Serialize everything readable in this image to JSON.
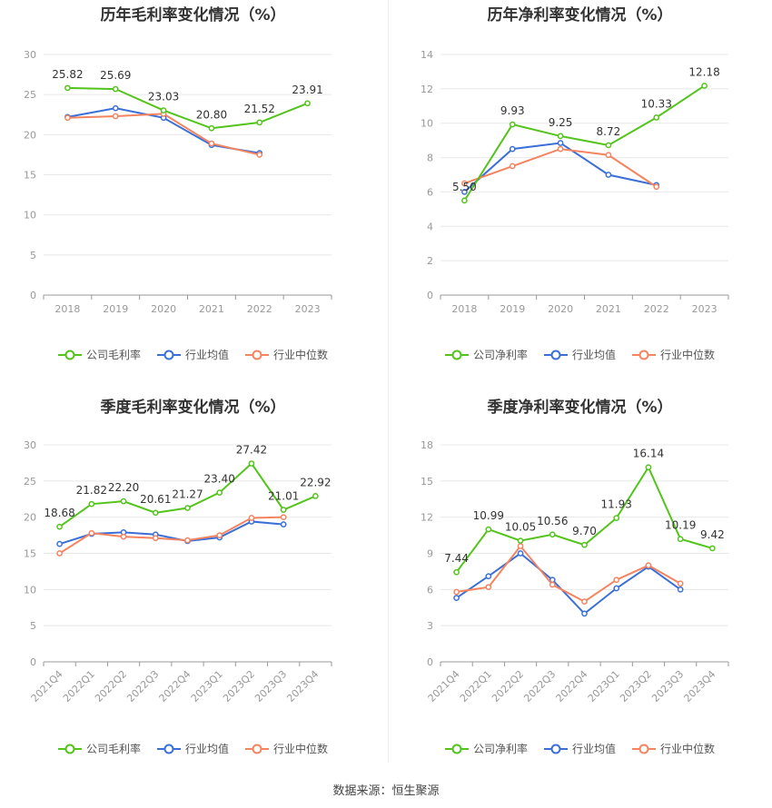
{
  "colors": {
    "company": "#52c41a",
    "avg": "#3b6fd8",
    "median": "#f4835f"
  },
  "source": "数据来源：恒生聚源",
  "chart_data": [
    {
      "type": "line",
      "title": "历年毛利率变化情况（%）",
      "categories": [
        "2018",
        "2019",
        "2020",
        "2021",
        "2022",
        "2023"
      ],
      "ylim": [
        0,
        30
      ],
      "yticks": [
        0,
        5,
        10,
        15,
        20,
        25,
        30
      ],
      "series": [
        {
          "name": "公司毛利率",
          "key": "company",
          "values": [
            25.82,
            25.69,
            23.03,
            20.8,
            21.52,
            23.91
          ],
          "labels": [
            "25.82",
            "25.69",
            "23.03",
            "20.80",
            "21.52",
            "23.91"
          ]
        },
        {
          "name": "行业均值",
          "key": "avg",
          "values": [
            22.2,
            23.3,
            22.1,
            18.7,
            17.7,
            null
          ]
        },
        {
          "name": "行业中位数",
          "key": "median",
          "values": [
            22.1,
            22.3,
            22.6,
            18.9,
            17.5,
            null
          ]
        }
      ],
      "grid": true,
      "legend": "bottom"
    },
    {
      "type": "line",
      "title": "历年净利率变化情况（%）",
      "categories": [
        "2018",
        "2019",
        "2020",
        "2021",
        "2022",
        "2023"
      ],
      "ylim": [
        0,
        14
      ],
      "yticks": [
        0,
        2,
        4,
        6,
        8,
        10,
        12,
        14
      ],
      "series": [
        {
          "name": "公司净利率",
          "key": "company",
          "values": [
            5.5,
            9.93,
            9.25,
            8.72,
            10.33,
            12.18
          ],
          "labels": [
            "5.50",
            "9.93",
            "9.25",
            "8.72",
            "10.33",
            "12.18"
          ]
        },
        {
          "name": "行业均值",
          "key": "avg",
          "values": [
            6.0,
            8.5,
            8.85,
            7.0,
            6.4,
            null
          ]
        },
        {
          "name": "行业中位数",
          "key": "median",
          "values": [
            6.5,
            7.5,
            8.5,
            8.15,
            6.3,
            null
          ]
        }
      ],
      "grid": true,
      "legend": "bottom"
    },
    {
      "type": "line",
      "title": "季度毛利率变化情况（%）",
      "categories": [
        "2021Q4",
        "2022Q1",
        "2022Q2",
        "2022Q3",
        "2022Q4",
        "2023Q1",
        "2023Q2",
        "2023Q3",
        "2023Q4"
      ],
      "ylim": [
        0,
        30
      ],
      "yticks": [
        0,
        5,
        10,
        15,
        20,
        25,
        30
      ],
      "series": [
        {
          "name": "公司毛利率",
          "key": "company",
          "values": [
            18.68,
            21.82,
            22.2,
            20.61,
            21.27,
            23.4,
            27.42,
            21.01,
            22.92
          ],
          "labels": [
            "18.68",
            "21.82",
            "22.20",
            "20.61",
            "21.27",
            "23.40",
            "27.42",
            "21.01",
            "22.92"
          ]
        },
        {
          "name": "行业均值",
          "key": "avg",
          "values": [
            16.3,
            17.7,
            17.9,
            17.6,
            16.7,
            17.2,
            19.4,
            19.0,
            null
          ]
        },
        {
          "name": "行业中位数",
          "key": "median",
          "values": [
            15.0,
            17.8,
            17.3,
            17.1,
            16.8,
            17.5,
            19.9,
            20.0,
            null
          ]
        }
      ],
      "grid": true,
      "legend": "bottom"
    },
    {
      "type": "line",
      "title": "季度净利率变化情况（%）",
      "categories": [
        "2021Q4",
        "2022Q1",
        "2022Q2",
        "2022Q3",
        "2022Q4",
        "2023Q1",
        "2023Q2",
        "2023Q3",
        "2023Q4"
      ],
      "ylim": [
        0,
        18
      ],
      "yticks": [
        0,
        3,
        6,
        9,
        12,
        15,
        18
      ],
      "series": [
        {
          "name": "公司净利率",
          "key": "company",
          "values": [
            7.44,
            10.99,
            10.05,
            10.56,
            9.7,
            11.93,
            16.14,
            10.19,
            9.42
          ],
          "labels": [
            "7.44",
            "10.99",
            "10.05",
            "10.56",
            "9.70",
            "11.93",
            "16.14",
            "10.19",
            "9.42"
          ]
        },
        {
          "name": "行业均值",
          "key": "avg",
          "values": [
            5.3,
            7.1,
            9.0,
            6.8,
            4.0,
            6.1,
            7.9,
            6.0,
            null
          ]
        },
        {
          "name": "行业中位数",
          "key": "median",
          "values": [
            5.8,
            6.2,
            9.6,
            6.4,
            5.0,
            6.8,
            8.0,
            6.5,
            null
          ]
        }
      ],
      "grid": true,
      "legend": "bottom"
    }
  ]
}
